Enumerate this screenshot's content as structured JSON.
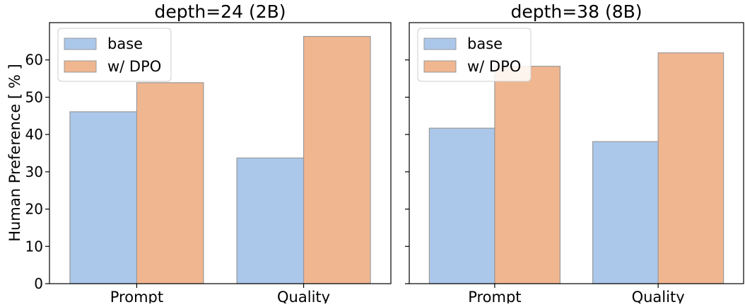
{
  "ylabel": "Human Preference [ % ]",
  "chart_data": [
    {
      "type": "bar",
      "title": "depth=24 (2B)",
      "categories": [
        "Prompt",
        "Quality"
      ],
      "series": [
        {
          "name": "base",
          "color": "#abc8eb",
          "values": [
            46.1,
            33.7
          ]
        },
        {
          "name": "w/ DPO",
          "color": "#f0b690",
          "values": [
            53.9,
            66.3
          ]
        }
      ],
      "ylabel": "Human Preference [ % ]",
      "ylim": [
        0,
        70
      ],
      "yticks": [
        0,
        10,
        20,
        30,
        40,
        50,
        60
      ],
      "legend": "top-left",
      "grid": false
    },
    {
      "type": "bar",
      "title": "depth=38 (8B)",
      "categories": [
        "Prompt",
        "Quality"
      ],
      "series": [
        {
          "name": "base",
          "color": "#abc8eb",
          "values": [
            41.7,
            38.1
          ]
        },
        {
          "name": "w/ DPO",
          "color": "#f0b690",
          "values": [
            58.3,
            61.9
          ]
        }
      ],
      "ylim": [
        0,
        70
      ],
      "yticks": [
        0,
        10,
        20,
        30,
        40,
        50,
        60
      ],
      "legend": "top-left",
      "grid": false,
      "shared_y": true
    }
  ]
}
